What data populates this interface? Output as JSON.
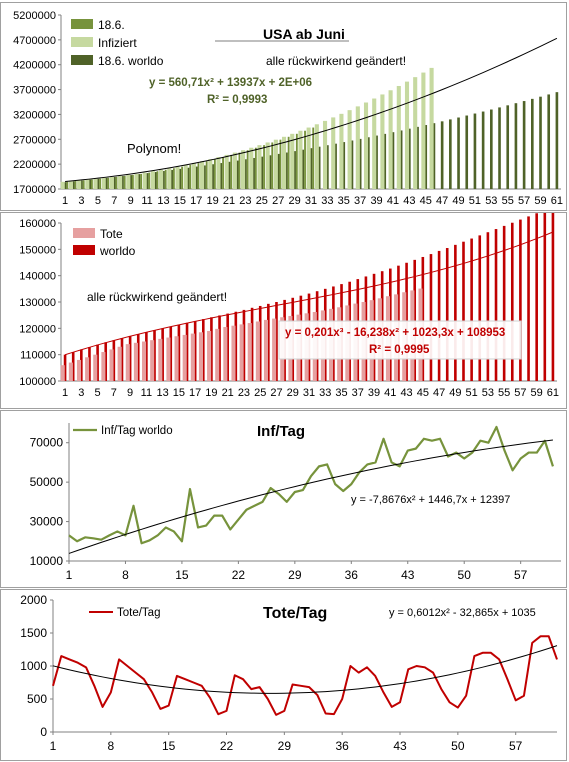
{
  "chart_data": [
    {
      "type": "bar",
      "title": "USA ab Juni",
      "annotations": [
        "alle rückwirkend geändert!",
        "Polynom!"
      ],
      "trendline_equation": "y = 560,71x² + 13937x + 2E+06",
      "r_squared": "R² = 0,9993",
      "x_ticks": [
        "1",
        "3",
        "5",
        "7",
        "9",
        "11",
        "13",
        "15",
        "17",
        "19",
        "21",
        "23",
        "25",
        "27",
        "29",
        "31",
        "33",
        "35",
        "37",
        "39",
        "41",
        "43",
        "45",
        "47",
        "49",
        "51",
        "53",
        "55",
        "57",
        "59",
        "61"
      ],
      "y_ticks": [
        "1700000",
        "2200000",
        "2700000",
        "3200000",
        "3700000",
        "4200000",
        "4700000",
        "5200000"
      ],
      "ylim": [
        1700000,
        5200000
      ],
      "legend_position": "top-left",
      "series": [
        {
          "name": "18.6.",
          "color": "#6b8a2e"
        },
        {
          "name": "Infiziert",
          "color": "#c6d9a0"
        },
        {
          "name": "18.6. worldo",
          "color": "#4f6228"
        }
      ],
      "worldo_values": [
        1838000,
        1854000,
        1871000,
        1888000,
        1906000,
        1924000,
        1942000,
        1961000,
        1980000,
        2000000,
        2020000,
        2041000,
        2062000,
        2083000,
        2105000,
        2128000,
        2151000,
        2174000,
        2198000,
        2222000,
        2247000,
        2272000,
        2298000,
        2324000,
        2351000,
        2378000,
        2406000,
        2434000,
        2462000,
        2491000,
        2521000,
        2551000,
        2581000,
        2612000,
        2644000,
        2676000,
        2708000,
        2741000,
        2775000,
        2809000,
        2843000,
        2878000,
        2914000,
        2950000,
        2987000,
        3024000,
        3061000,
        3100000,
        3138000,
        3178000,
        3218000,
        3258000,
        3299000,
        3341000,
        3383000,
        3426000,
        3469000,
        3513000,
        3557000,
        3602000,
        3648000
      ],
      "infected_values": [
        1845000,
        1860000,
        1876000,
        1892000,
        1910000,
        1927000,
        1945000,
        1964000,
        1984000,
        2004000,
        2030000,
        2058000,
        2087000,
        2118000,
        2150000,
        2185000,
        2221000,
        2259000,
        2300000,
        2342000,
        2386000,
        2432000,
        2480000,
        2530000,
        2582000,
        2636000,
        2692000,
        2750000,
        2810000,
        2872000,
        2936000,
        3002000,
        3070000,
        3140000,
        3212000,
        3286000,
        3362000,
        3440000,
        3520000,
        3602000,
        3686000,
        3772000,
        3860000,
        3950000,
        4042000,
        4136000
      ]
    },
    {
      "type": "bar",
      "annotation": "alle rückwirkend geändert!",
      "trendline_equation": "y = 0,201x³ - 16,238x² + 1023,3x + 108953",
      "r_squared": "R² = 0,9995",
      "x_ticks": [
        "1",
        "3",
        "5",
        "7",
        "9",
        "11",
        "13",
        "15",
        "17",
        "19",
        "21",
        "23",
        "25",
        "27",
        "29",
        "31",
        "33",
        "35",
        "37",
        "39",
        "41",
        "43",
        "45",
        "47",
        "49",
        "51",
        "53",
        "55",
        "57",
        "59",
        "61"
      ],
      "y_ticks": [
        "100000",
        "110000",
        "120000",
        "130000",
        "140000",
        "150000",
        "160000"
      ],
      "ylim": [
        100000,
        160000
      ],
      "legend_position": "top-left",
      "series": [
        {
          "name": "Tote",
          "color": "#e6a0a0"
        },
        {
          "name": "worldo",
          "color": "#c00000"
        }
      ],
      "worldo_values": [
        110000,
        111000,
        112000,
        112900,
        113800,
        114700,
        115500,
        116300,
        117100,
        117800,
        118600,
        119300,
        120000,
        120700,
        121400,
        122100,
        122800,
        123500,
        124200,
        124900,
        125600,
        126300,
        127000,
        127800,
        128500,
        129300,
        130000,
        130800,
        131600,
        132400,
        133200,
        134100,
        135000,
        135900,
        136800,
        137700,
        138700,
        139700,
        140700,
        141700,
        142700,
        143800,
        144900,
        146000,
        147100,
        148200,
        149400,
        150500,
        151700,
        152900,
        154100,
        155300,
        156500,
        157700,
        158900,
        160100,
        161300,
        162500,
        163700,
        164900,
        166100
      ],
      "tote_values": [
        106000,
        107000,
        108000,
        109000,
        110000,
        111000,
        112000,
        113000,
        114000,
        114500,
        115000,
        115500,
        116000,
        116500,
        117000,
        117500,
        118000,
        118500,
        119000,
        119800,
        120500,
        121000,
        121500,
        122000,
        122600,
        123200,
        123700,
        124200,
        124700,
        125200,
        125700,
        126200,
        126800,
        127400,
        128000,
        128700,
        129400,
        130000,
        130700,
        131400,
        132200,
        132900,
        133700,
        134400,
        135100
      ]
    },
    {
      "type": "line",
      "title": "Inf/Tag",
      "series": [
        {
          "name": "Inf/Tag worldo",
          "color": "#77933c"
        }
      ],
      "trendline_equation": "y = -7,8676x² + 1446,7x + 12397",
      "x_ticks": [
        "1",
        "8",
        "15",
        "22",
        "29",
        "36",
        "43",
        "50",
        "57"
      ],
      "y_ticks": [
        "10000",
        "30000",
        "50000",
        "70000"
      ],
      "ylim": [
        10000,
        80000
      ],
      "xlim": [
        1,
        61
      ],
      "values": [
        23000,
        20000,
        22000,
        21500,
        20800,
        23000,
        25000,
        23000,
        38000,
        19000,
        20500,
        23000,
        27000,
        25000,
        20000,
        46500,
        27000,
        28000,
        33000,
        33000,
        26000,
        31000,
        36000,
        38000,
        40000,
        47000,
        44000,
        40000,
        45000,
        46000,
        53000,
        58000,
        59000,
        49000,
        45500,
        49000,
        55000,
        59000,
        60000,
        72000,
        60000,
        58000,
        66000,
        67000,
        72000,
        71000,
        72000,
        63000,
        65000,
        62000,
        65000,
        71000,
        70000,
        78000,
        66000,
        56000,
        62000,
        65000,
        65000,
        71000,
        58000
      ]
    },
    {
      "type": "line",
      "title": "Tote/Tag",
      "series": [
        {
          "name": "Tote/Tag",
          "color": "#c00000"
        }
      ],
      "trendline_equation": "y = 0,6012x² - 32,865x + 1035",
      "x_ticks": [
        "1",
        "8",
        "15",
        "22",
        "29",
        "36",
        "43",
        "50",
        "57"
      ],
      "y_ticks": [
        "0",
        "500",
        "1000",
        "1500",
        "2000"
      ],
      "ylim": [
        0,
        2000
      ],
      "xlim": [
        1,
        61
      ],
      "values": [
        700,
        1150,
        1100,
        1050,
        980,
        700,
        380,
        600,
        1100,
        1000,
        900,
        800,
        600,
        350,
        400,
        850,
        800,
        750,
        700,
        520,
        270,
        320,
        860,
        800,
        650,
        680,
        500,
        260,
        320,
        720,
        700,
        680,
        560,
        280,
        270,
        500,
        1000,
        900,
        980,
        850,
        600,
        380,
        450,
        950,
        1000,
        980,
        900,
        650,
        450,
        370,
        550,
        1150,
        1200,
        1200,
        1100,
        800,
        480,
        550,
        1350,
        1450,
        1450,
        1100
      ]
    }
  ]
}
